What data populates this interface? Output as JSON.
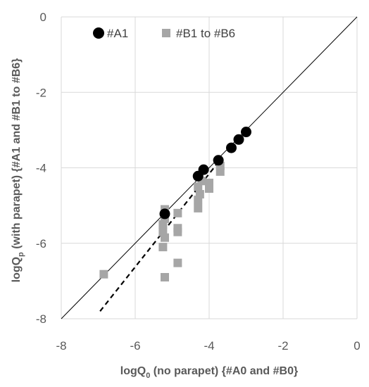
{
  "chart_data": {
    "type": "scatter",
    "xlabel": {
      "prefix": "logQ",
      "sub": "0",
      "suffix": " (no parapet) {#A0 and #B0}"
    },
    "ylabel": {
      "prefix": "logQ",
      "sub": "p",
      "suffix": " (with parapet) {#A1 and #B1 to #B6}"
    },
    "xlim": [
      -8,
      0
    ],
    "ylim": [
      -8,
      0
    ],
    "xticks": [
      -8,
      -6,
      -4,
      -2,
      0
    ],
    "yticks": [
      -8,
      -6,
      -4,
      -2,
      0
    ],
    "xtick_labels": [
      "-8",
      "-6",
      "-4",
      "-2",
      "0"
    ],
    "ytick_labels": [
      "-8",
      "-6",
      "-4",
      "-2",
      "0"
    ],
    "grid": true,
    "legend_position": "top-left",
    "series": [
      {
        "name": "#A1",
        "marker": "circle",
        "color": "#000000",
        "points": [
          [
            -3.0,
            -3.05
          ],
          [
            -3.2,
            -3.25
          ],
          [
            -3.4,
            -3.47
          ],
          [
            -3.75,
            -3.8
          ],
          [
            -4.15,
            -4.05
          ],
          [
            -4.3,
            -4.22
          ],
          [
            -5.2,
            -5.22
          ]
        ]
      },
      {
        "name": "#B1 to #B6",
        "marker": "square",
        "color": "#a6a6a6",
        "points": [
          [
            -3.7,
            -3.95
          ],
          [
            -3.7,
            -4.1
          ],
          [
            -4.0,
            -4.4
          ],
          [
            -4.0,
            -4.55
          ],
          [
            -4.2,
            -4.35
          ],
          [
            -4.3,
            -4.5
          ],
          [
            -4.25,
            -4.7
          ],
          [
            -4.3,
            -4.85
          ],
          [
            -4.3,
            -5.07
          ],
          [
            -4.85,
            -5.2
          ],
          [
            -4.85,
            -5.6
          ],
          [
            -4.85,
            -5.7
          ],
          [
            -4.85,
            -6.52
          ],
          [
            -5.2,
            -5.1
          ],
          [
            -5.2,
            -5.35
          ],
          [
            -5.25,
            -5.5
          ],
          [
            -5.25,
            -5.7
          ],
          [
            -5.2,
            -5.85
          ],
          [
            -5.25,
            -6.1
          ],
          [
            -5.2,
            -6.9
          ],
          [
            -6.85,
            -6.82
          ]
        ]
      }
    ],
    "reference_lines": [
      {
        "style": "solid",
        "color": "#000000",
        "from": [
          -8,
          -8
        ],
        "to": [
          0,
          0
        ]
      },
      {
        "style": "dashed",
        "color": "#000000",
        "from": [
          -6.95,
          -7.8
        ],
        "to": [
          -3.75,
          -3.85
        ]
      }
    ]
  }
}
